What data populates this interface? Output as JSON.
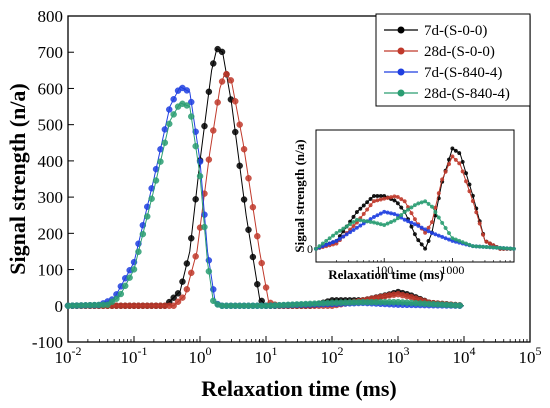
{
  "chart_data": [
    {
      "type": "line",
      "xlabel": "Relaxation time (ms)",
      "ylabel": "Signal strength (n/a)",
      "xscale": "log",
      "xlim": [
        0.01,
        100000
      ],
      "ylim": [
        -100,
        800
      ],
      "x_tick_labels": [
        {
          "base": "10",
          "exp": "-2"
        },
        {
          "base": "10",
          "exp": "-1"
        },
        {
          "base": "10",
          "exp": "0"
        },
        {
          "base": "10",
          "exp": "1"
        },
        {
          "base": "10",
          "exp": "2"
        },
        {
          "base": "10",
          "exp": "3"
        },
        {
          "base": "10",
          "exp": "4"
        },
        {
          "base": "10",
          "exp": "5"
        }
      ],
      "y_tick_labels": [
        "-100",
        "0",
        "100",
        "200",
        "300",
        "400",
        "500",
        "600",
        "700",
        "800"
      ],
      "legend_position": "top-right",
      "series": [
        {
          "name": "7d-(S-0-0)",
          "color": "#000000",
          "points": [
            [
              0.01,
              0
            ],
            [
              0.1,
              0
            ],
            [
              0.3,
              0
            ],
            [
              0.5,
              40
            ],
            [
              0.7,
              150
            ],
            [
              1.0,
              400
            ],
            [
              1.5,
              650
            ],
            [
              1.8,
              710
            ],
            [
              2.2,
              700
            ],
            [
              3.0,
              560
            ],
            [
              5.0,
              250
            ],
            [
              8.0,
              20
            ],
            [
              10,
              0
            ],
            [
              50,
              0
            ],
            [
              100,
              15
            ],
            [
              300,
              15
            ],
            [
              700,
              30
            ],
            [
              1000,
              38
            ],
            [
              1500,
              30
            ],
            [
              3000,
              8
            ],
            [
              10000,
              0
            ]
          ]
        },
        {
          "name": "28d-(S-0-0)",
          "color": "#c0392b",
          "points": [
            [
              0.01,
              0
            ],
            [
              0.1,
              0
            ],
            [
              0.4,
              0
            ],
            [
              0.6,
              30
            ],
            [
              0.9,
              150
            ],
            [
              1.4,
              420
            ],
            [
              2.0,
              600
            ],
            [
              2.4,
              645
            ],
            [
              3.0,
              620
            ],
            [
              4.5,
              450
            ],
            [
              8.0,
              150
            ],
            [
              11,
              10
            ],
            [
              15,
              0
            ],
            [
              100,
              0
            ],
            [
              300,
              15
            ],
            [
              700,
              28
            ],
            [
              1000,
              32
            ],
            [
              1500,
              25
            ],
            [
              3000,
              8
            ],
            [
              10000,
              0
            ]
          ]
        },
        {
          "name": "7d-(S-840-4)",
          "color": "#1f3fe0",
          "points": [
            [
              0.01,
              0
            ],
            [
              0.03,
              2
            ],
            [
              0.05,
              20
            ],
            [
              0.1,
              120
            ],
            [
              0.2,
              350
            ],
            [
              0.35,
              550
            ],
            [
              0.5,
              605
            ],
            [
              0.7,
              590
            ],
            [
              1.0,
              400
            ],
            [
              1.3,
              150
            ],
            [
              1.7,
              10
            ],
            [
              2.0,
              0
            ],
            [
              10,
              0
            ],
            [
              100,
              5
            ],
            [
              300,
              8
            ],
            [
              1000,
              3
            ],
            [
              10000,
              0
            ]
          ]
        },
        {
          "name": "28d-(S-840-4)",
          "color": "#2a9d72",
          "points": [
            [
              0.01,
              0
            ],
            [
              0.04,
              3
            ],
            [
              0.06,
              25
            ],
            [
              0.1,
              100
            ],
            [
              0.2,
              320
            ],
            [
              0.35,
              510
            ],
            [
              0.5,
              560
            ],
            [
              0.7,
              550
            ],
            [
              1.0,
              360
            ],
            [
              1.3,
              120
            ],
            [
              1.6,
              10
            ],
            [
              2.0,
              0
            ],
            [
              10,
              0
            ],
            [
              100,
              8
            ],
            [
              300,
              10
            ],
            [
              1000,
              10
            ],
            [
              3000,
              5
            ],
            [
              10000,
              0
            ]
          ]
        }
      ]
    },
    {
      "type": "line",
      "xlabel": "Relaxation time (ms)",
      "ylabel": "Signal strength (n/a)",
      "xscale": "log",
      "xlim": [
        10,
        8000
      ],
      "ylim": [
        -5,
        45
      ],
      "x_tick_labels": [
        "100",
        "1000"
      ],
      "y_tick_labels": [
        "0"
      ],
      "series": [
        {
          "name": "7d-(S-0-0)",
          "color": "#000000",
          "points": [
            [
              10,
              0
            ],
            [
              20,
              3
            ],
            [
              40,
              14
            ],
            [
              70,
              20
            ],
            [
              100,
              20
            ],
            [
              150,
              18
            ],
            [
              200,
              14
            ],
            [
              300,
              4
            ],
            [
              400,
              0
            ],
            [
              500,
              6
            ],
            [
              700,
              25
            ],
            [
              1000,
              38
            ],
            [
              1300,
              36
            ],
            [
              2000,
              20
            ],
            [
              3000,
              3
            ],
            [
              5000,
              0
            ],
            [
              8000,
              0
            ]
          ]
        },
        {
          "name": "28d-(S-0-0)",
          "color": "#c0392b",
          "points": [
            [
              10,
              0
            ],
            [
              20,
              2
            ],
            [
              40,
              10
            ],
            [
              70,
              18
            ],
            [
              100,
              19
            ],
            [
              150,
              20
            ],
            [
              200,
              18
            ],
            [
              300,
              10
            ],
            [
              400,
              6
            ],
            [
              500,
              10
            ],
            [
              700,
              26
            ],
            [
              1000,
              35
            ],
            [
              1300,
              32
            ],
            [
              2000,
              18
            ],
            [
              3000,
              3
            ],
            [
              5000,
              0
            ],
            [
              8000,
              0
            ]
          ]
        },
        {
          "name": "7d-(S-840-4)",
          "color": "#1f3fe0",
          "points": [
            [
              10,
              0
            ],
            [
              20,
              3
            ],
            [
              40,
              8
            ],
            [
              70,
              12
            ],
            [
              100,
              14
            ],
            [
              150,
              13
            ],
            [
              200,
              11
            ],
            [
              300,
              9
            ],
            [
              500,
              6
            ],
            [
              1000,
              3
            ],
            [
              2000,
              1
            ],
            [
              8000,
              0
            ]
          ]
        },
        {
          "name": "28d-(S-840-4)",
          "color": "#2a9d72",
          "points": [
            [
              10,
              0
            ],
            [
              20,
              6
            ],
            [
              40,
              11
            ],
            [
              70,
              10
            ],
            [
              100,
              9
            ],
            [
              150,
              11
            ],
            [
              200,
              14
            ],
            [
              300,
              17
            ],
            [
              400,
              18
            ],
            [
              500,
              16
            ],
            [
              700,
              10
            ],
            [
              1000,
              4
            ],
            [
              2000,
              1
            ],
            [
              8000,
              0
            ]
          ]
        }
      ]
    }
  ]
}
